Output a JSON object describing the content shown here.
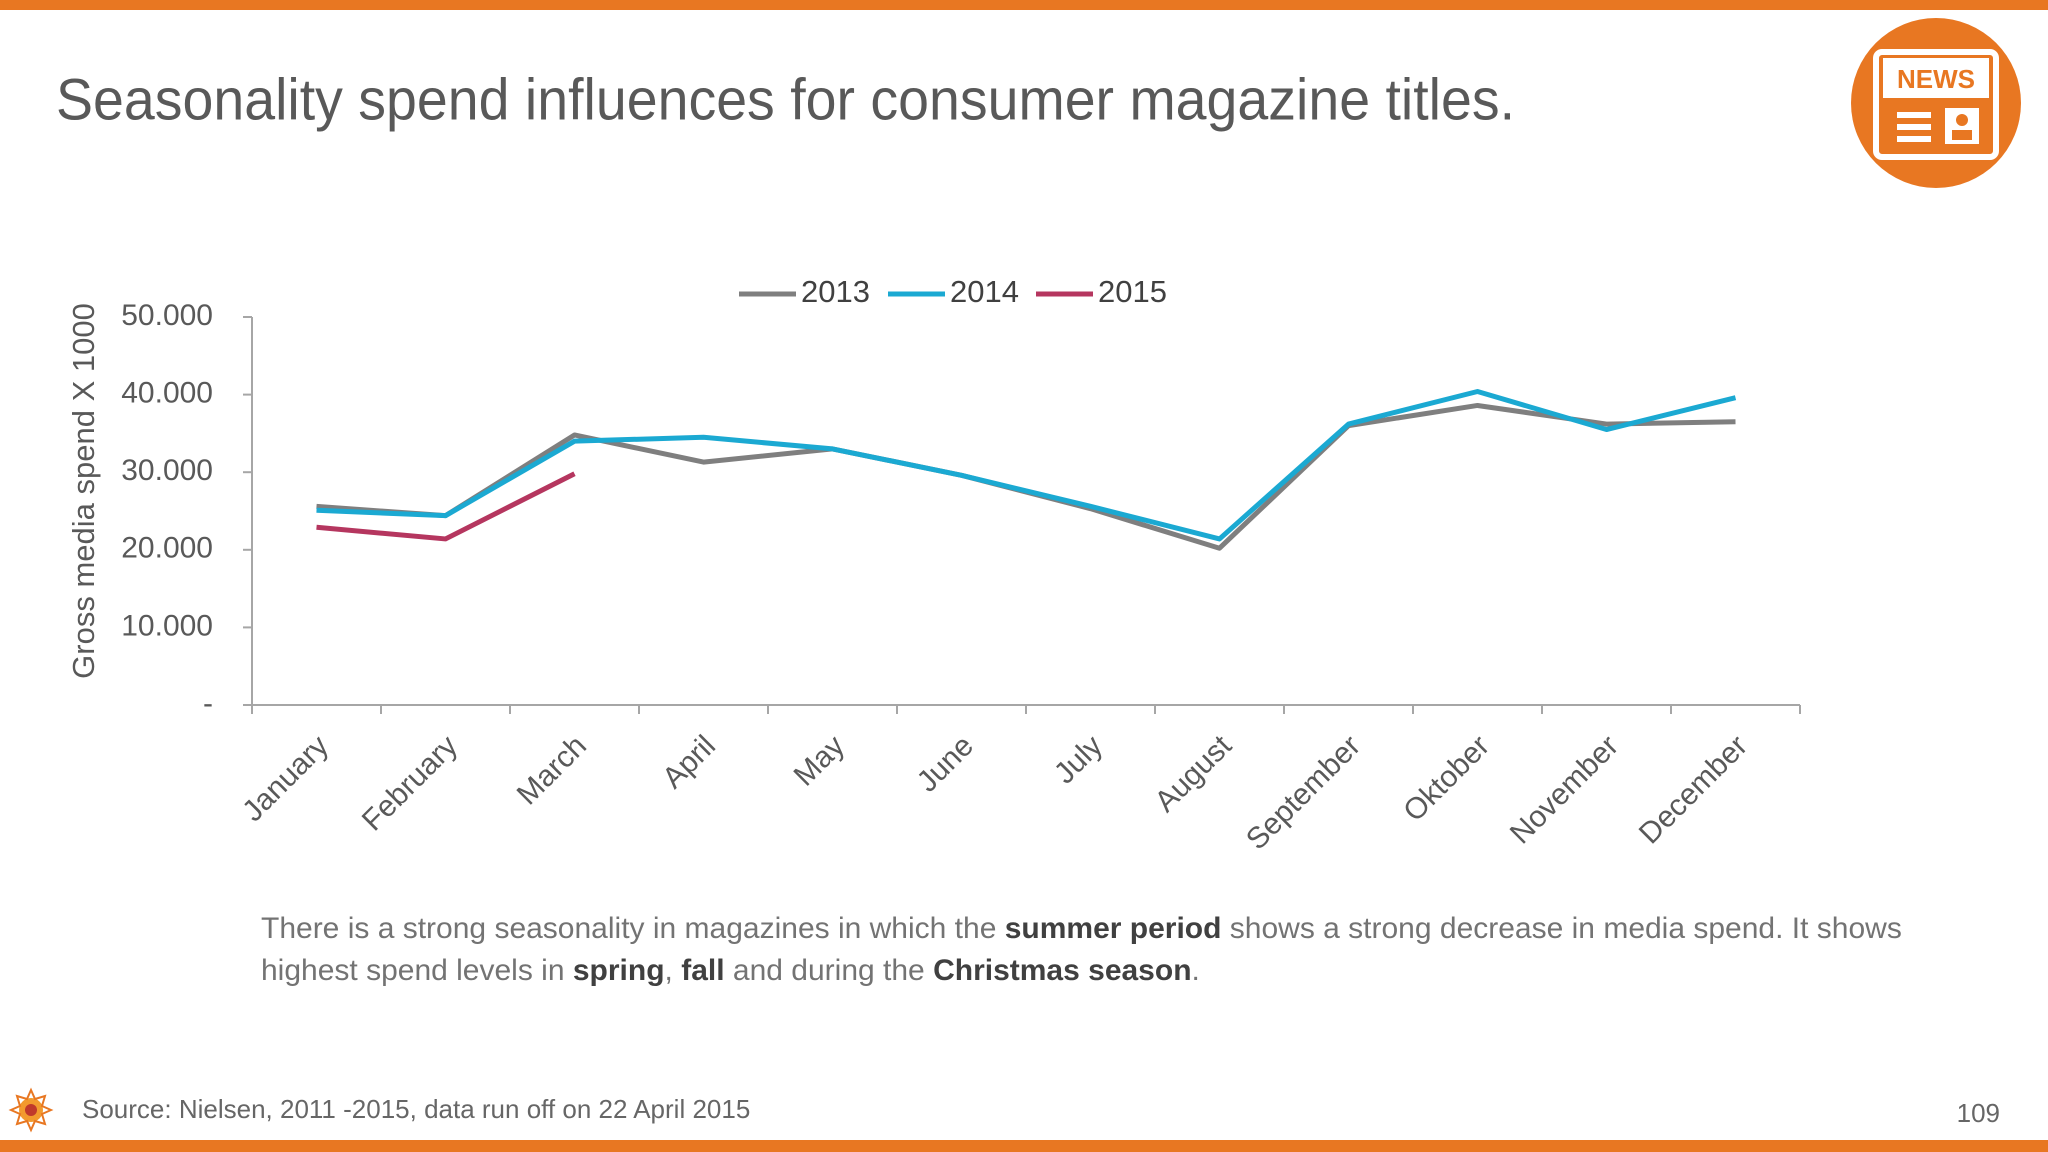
{
  "chart_data": {
    "type": "line",
    "title": "Seasonality spend influences for consumer magazine titles.",
    "y_label": "Gross media spend X 1000",
    "categories": [
      "January",
      "February",
      "March",
      "April",
      "May",
      "June",
      "July",
      "August",
      "September",
      "Oktober",
      "November",
      "December"
    ],
    "series": [
      {
        "name": "2013",
        "color": "#7f7f7f",
        "values": [
          25600,
          24400,
          34800,
          31300,
          33000,
          29600,
          25300,
          20200,
          36000,
          38600,
          36200,
          36500
        ]
      },
      {
        "name": "2014",
        "color": "#1ba9d2",
        "values": [
          25100,
          24400,
          34000,
          34500,
          33000,
          29600,
          25600,
          21400,
          36200,
          40400,
          35500,
          39600
        ]
      },
      {
        "name": "2015",
        "color": "#b5365f",
        "values": [
          22900,
          21400,
          29800,
          null,
          null,
          null,
          null,
          null,
          null,
          null,
          null,
          null
        ]
      }
    ],
    "ylim": [
      0,
      50000
    ],
    "yticks": [
      {
        "value": 0,
        "label": "-"
      },
      {
        "value": 10000,
        "label": "10.000"
      },
      {
        "value": 20000,
        "label": "20.000"
      },
      {
        "value": 30000,
        "label": "30.000"
      },
      {
        "value": 40000,
        "label": "40.000"
      },
      {
        "value": 50000,
        "label": "50.000"
      }
    ],
    "grid": false,
    "legend": "top"
  },
  "body": {
    "lines": [
      {
        "segments": [
          {
            "text": "There is a strong seasonality in magazines in which the ",
            "bold": false
          },
          {
            "text": "summer period",
            "bold": true
          },
          {
            "text": " shows a strong decrease in media spend. It shows",
            "bold": false
          }
        ]
      },
      {
        "segments": [
          {
            "text": "highest spend levels in ",
            "bold": false
          },
          {
            "text": "spring",
            "bold": true
          },
          {
            "text": ", ",
            "bold": false
          },
          {
            "text": "fall",
            "bold": true
          },
          {
            "text": " and during the ",
            "bold": false
          },
          {
            "text": "Christmas season",
            "bold": true
          },
          {
            "text": ".",
            "bold": false
          }
        ]
      }
    ]
  },
  "source": "Source: Nielsen, 2011 -2015, data run off on 22 April 2015",
  "page_number": "109",
  "icon_label": "NEWS"
}
